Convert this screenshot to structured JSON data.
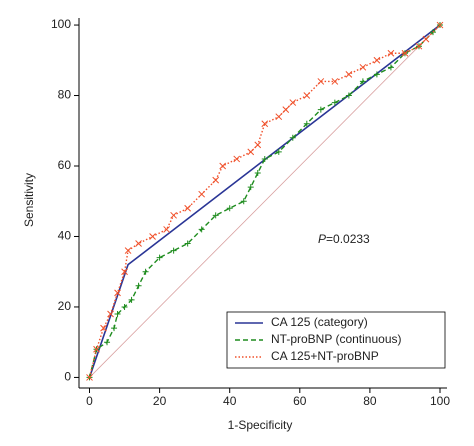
{
  "chart_data": {
    "type": "line",
    "x_label": "1-Specificity",
    "y_label": "Sensitivity",
    "annotation": {
      "italic": "P",
      "text": "=0.0233"
    },
    "xlim": [
      -3,
      102
    ],
    "ylim": [
      -3,
      102
    ],
    "xticks": [
      0,
      20,
      40,
      60,
      80,
      100
    ],
    "yticks": [
      0,
      20,
      40,
      60,
      80,
      100
    ],
    "legend": "lower right",
    "series": [
      {
        "name": "CA 125 (category)",
        "color": "#2a3596",
        "dash": "solid",
        "marker": "none",
        "x": [
          0,
          11,
          100
        ],
        "values": [
          0,
          32,
          100
        ]
      },
      {
        "name": "NT-proBNP (continuous)",
        "color": "#1e8c1e",
        "dash": "dashed",
        "marker": "plus",
        "x": [
          0,
          2,
          5,
          7,
          8,
          10,
          12,
          14,
          16,
          20,
          24,
          28,
          32,
          36,
          40,
          44,
          46,
          48,
          50,
          54,
          58,
          62,
          66,
          70,
          74,
          78,
          82,
          86,
          90,
          94,
          98,
          100
        ],
        "values": [
          0,
          8,
          10,
          14,
          18,
          20,
          22,
          26,
          30,
          34,
          36,
          38,
          42,
          46,
          48,
          50,
          54,
          58,
          62,
          64,
          68,
          72,
          76,
          78,
          80,
          84,
          86,
          88,
          92,
          94,
          98,
          100
        ]
      },
      {
        "name": "CA 125+NT-proBNP",
        "color": "#f0502a",
        "dash": "dotted",
        "marker": "cross",
        "x": [
          0,
          2,
          4,
          6,
          8,
          10,
          11,
          14,
          18,
          22,
          24,
          28,
          32,
          36,
          38,
          42,
          46,
          48,
          50,
          54,
          56,
          58,
          62,
          66,
          70,
          74,
          78,
          82,
          86,
          90,
          94,
          96,
          100
        ],
        "values": [
          0,
          8,
          14,
          18,
          24,
          30,
          36,
          38,
          40,
          42,
          46,
          48,
          52,
          56,
          60,
          62,
          64,
          66,
          72,
          74,
          76,
          78,
          80,
          84,
          84,
          86,
          88,
          90,
          92,
          92,
          94,
          96,
          100
        ]
      }
    ]
  }
}
